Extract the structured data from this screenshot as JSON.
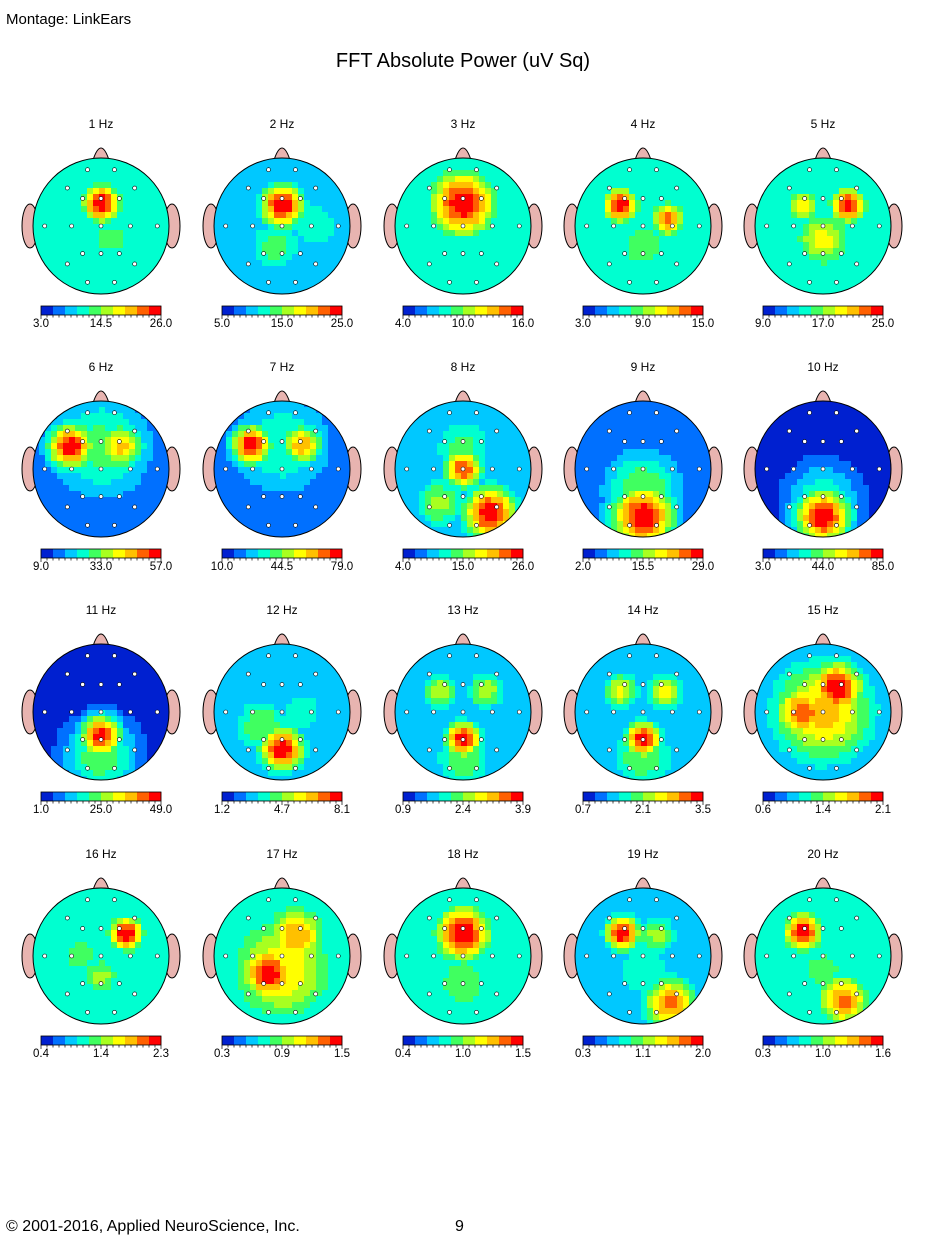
{
  "montage": "Montage:  LinkEars",
  "title": "FFT Absolute Power  (uV Sq)",
  "footer": {
    "copyright": "© 2001-2016, Applied NeuroScience, Inc.",
    "page": "9"
  },
  "colormap": [
    "#0020d0",
    "#0070ff",
    "#00c8ff",
    "#00ffd0",
    "#40ff60",
    "#a8ff20",
    "#ffff00",
    "#ffc000",
    "#ff6000",
    "#ff0000"
  ],
  "maps": [
    {
      "label": "1 Hz",
      "scale": [
        "3.0",
        "14.5",
        "26.0"
      ],
      "blobs": [
        [
          0.0,
          -0.33,
          0.22,
          1.0
        ],
        [
          0.15,
          0.2,
          0.35,
          0.45
        ],
        [
          -0.55,
          0.1,
          0.3,
          0.3
        ],
        [
          0.5,
          -0.3,
          0.3,
          0.35
        ]
      ],
      "base": 0.3
    },
    {
      "label": "2 Hz",
      "scale": [
        "5.0",
        "15.0",
        "25.0"
      ],
      "blobs": [
        [
          0.0,
          -0.3,
          0.25,
          1.0
        ],
        [
          -0.1,
          0.3,
          0.35,
          0.45
        ],
        [
          0.5,
          0.0,
          0.35,
          0.4
        ]
      ],
      "base": 0.25
    },
    {
      "label": "3 Hz",
      "scale": [
        "4.0",
        "10.0",
        "16.0"
      ],
      "blobs": [
        [
          0.0,
          -0.33,
          0.38,
          1.0
        ],
        [
          -0.2,
          0.35,
          0.3,
          0.35
        ],
        [
          0.4,
          0.2,
          0.35,
          0.35
        ]
      ],
      "base": 0.3
    },
    {
      "label": "4 Hz",
      "scale": [
        "3.0",
        "9.0",
        "15.0"
      ],
      "blobs": [
        [
          -0.33,
          -0.3,
          0.2,
          1.0
        ],
        [
          0.37,
          -0.1,
          0.2,
          0.85
        ],
        [
          0.0,
          0.3,
          0.35,
          0.5
        ]
      ],
      "base": 0.3
    },
    {
      "label": "5 Hz",
      "scale": [
        "9.0",
        "17.0",
        "25.0"
      ],
      "blobs": [
        [
          0.37,
          -0.3,
          0.2,
          1.0
        ],
        [
          -0.3,
          -0.3,
          0.2,
          0.7
        ],
        [
          0.0,
          0.2,
          0.35,
          0.65
        ]
      ],
      "base": 0.3
    },
    {
      "label": "6 Hz",
      "scale": [
        "9.0",
        "33.0",
        "57.0"
      ],
      "blobs": [
        [
          -0.45,
          -0.33,
          0.25,
          1.0
        ],
        [
          0.3,
          -0.33,
          0.25,
          0.75
        ],
        [
          0.0,
          -0.33,
          0.6,
          0.45
        ]
      ],
      "base": 0.18
    },
    {
      "label": "7 Hz",
      "scale": [
        "10.0",
        "44.5",
        "79.0"
      ],
      "blobs": [
        [
          -0.45,
          -0.35,
          0.22,
          1.0
        ],
        [
          0.3,
          -0.35,
          0.22,
          0.8
        ],
        [
          0.0,
          -0.35,
          0.6,
          0.4
        ]
      ],
      "base": 0.12
    },
    {
      "label": "8 Hz",
      "scale": [
        "4.0",
        "15.0",
        "26.0"
      ],
      "blobs": [
        [
          0.0,
          0.0,
          0.22,
          0.9
        ],
        [
          0.4,
          0.65,
          0.3,
          1.0
        ],
        [
          0.0,
          -0.3,
          0.4,
          0.45
        ],
        [
          -0.35,
          0.5,
          0.3,
          0.55
        ]
      ],
      "base": 0.22
    },
    {
      "label": "9 Hz",
      "scale": [
        "2.0",
        "15.5",
        "29.0"
      ],
      "blobs": [
        [
          0.0,
          0.7,
          0.35,
          1.0
        ],
        [
          0.0,
          0.3,
          0.45,
          0.5
        ]
      ],
      "base": 0.15
    },
    {
      "label": "10 Hz",
      "scale": [
        "3.0",
        "44.0",
        "85.0"
      ],
      "blobs": [
        [
          0.0,
          0.7,
          0.3,
          1.0
        ],
        [
          0.0,
          0.45,
          0.4,
          0.4
        ]
      ],
      "base": 0.0
    },
    {
      "label": "11 Hz",
      "scale": [
        "1.0",
        "25.0",
        "49.0"
      ],
      "blobs": [
        [
          0.0,
          0.35,
          0.22,
          1.0
        ],
        [
          0.0,
          0.65,
          0.4,
          0.5
        ]
      ],
      "base": 0.0
    },
    {
      "label": "12 Hz",
      "scale": [
        "1.2",
        "4.7",
        "8.1"
      ],
      "blobs": [
        [
          0.0,
          0.55,
          0.25,
          1.0
        ],
        [
          -0.3,
          0.2,
          0.35,
          0.5
        ],
        [
          0.3,
          0.0,
          0.3,
          0.4
        ]
      ],
      "base": 0.2
    },
    {
      "label": "13 Hz",
      "scale": [
        "0.9",
        "2.4",
        "3.9"
      ],
      "blobs": [
        [
          0.0,
          0.4,
          0.2,
          1.0
        ],
        [
          -0.33,
          -0.3,
          0.22,
          0.6
        ],
        [
          0.33,
          -0.3,
          0.22,
          0.6
        ],
        [
          0.0,
          0.7,
          0.35,
          0.5
        ]
      ],
      "base": 0.25
    },
    {
      "label": "14 Hz",
      "scale": [
        "0.7",
        "2.1",
        "3.5"
      ],
      "blobs": [
        [
          0.0,
          0.4,
          0.2,
          1.0
        ],
        [
          -0.33,
          -0.3,
          0.22,
          0.65
        ],
        [
          0.33,
          -0.3,
          0.22,
          0.65
        ],
        [
          0.0,
          0.65,
          0.4,
          0.5
        ]
      ],
      "base": 0.25
    },
    {
      "label": "15 Hz",
      "scale": [
        "0.6",
        "1.4",
        "2.1"
      ],
      "blobs": [
        [
          0.2,
          -0.35,
          0.3,
          1.0
        ],
        [
          -0.3,
          0.0,
          0.3,
          0.9
        ],
        [
          0.0,
          0.0,
          0.6,
          0.75
        ]
      ],
      "base": 0.2
    },
    {
      "label": "16 Hz",
      "scale": [
        "0.4",
        "1.4",
        "2.3"
      ],
      "blobs": [
        [
          0.37,
          -0.33,
          0.2,
          1.0
        ],
        [
          0.0,
          0.3,
          0.25,
          0.55
        ],
        [
          -0.3,
          0.0,
          0.35,
          0.45
        ]
      ],
      "base": 0.3
    },
    {
      "label": "17 Hz",
      "scale": [
        "0.3",
        "0.9",
        "1.5"
      ],
      "blobs": [
        [
          -0.2,
          0.25,
          0.3,
          1.0
        ],
        [
          0.2,
          -0.3,
          0.35,
          0.8
        ],
        [
          0.0,
          0.2,
          0.65,
          0.7
        ]
      ],
      "base": 0.3
    },
    {
      "label": "18 Hz",
      "scale": [
        "0.4",
        "1.0",
        "1.5"
      ],
      "blobs": [
        [
          0.0,
          -0.33,
          0.32,
          1.0
        ],
        [
          0.0,
          0.4,
          0.4,
          0.5
        ]
      ],
      "base": 0.3
    },
    {
      "label": "19 Hz",
      "scale": [
        "0.3",
        "1.1",
        "2.0"
      ],
      "blobs": [
        [
          -0.3,
          -0.33,
          0.2,
          1.0
        ],
        [
          0.4,
          0.7,
          0.3,
          0.85
        ],
        [
          0.2,
          -0.3,
          0.25,
          0.55
        ],
        [
          0.0,
          0.2,
          0.4,
          0.4
        ]
      ],
      "base": 0.25
    },
    {
      "label": "20 Hz",
      "scale": [
        "0.3",
        "1.0",
        "1.6"
      ],
      "blobs": [
        [
          -0.3,
          -0.35,
          0.22,
          1.0
        ],
        [
          0.3,
          0.65,
          0.3,
          0.85
        ],
        [
          0.0,
          0.2,
          0.4,
          0.45
        ]
      ],
      "base": 0.3
    }
  ]
}
